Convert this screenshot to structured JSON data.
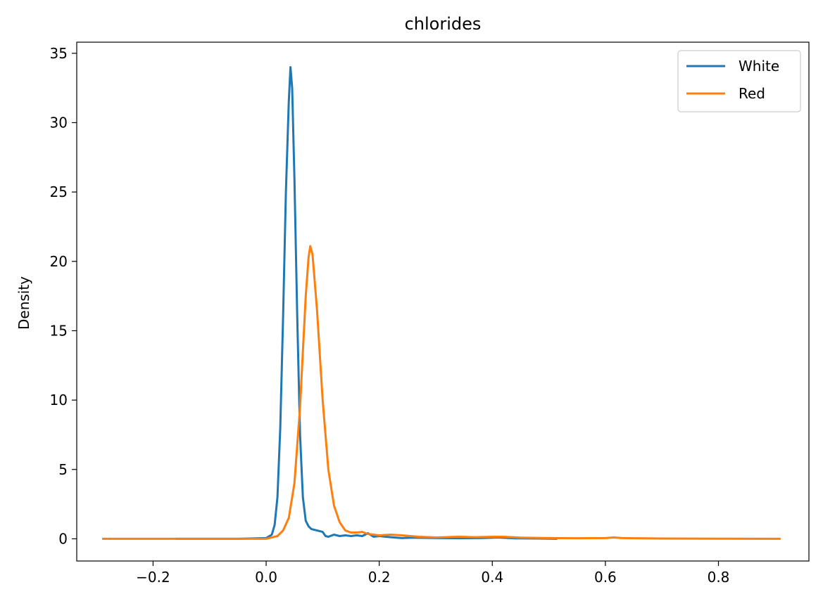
{
  "chart_data": {
    "type": "line",
    "title": "chlorides",
    "xlabel": "",
    "ylabel": "Density",
    "xlim": [
      -0.335,
      0.96
    ],
    "ylim": [
      -1.6,
      35.8
    ],
    "xticks": [
      -0.2,
      0.0,
      0.2,
      0.4,
      0.6,
      0.8
    ],
    "xtick_labels": [
      "−0.2",
      "0.0",
      "0.2",
      "0.4",
      "0.6",
      "0.8"
    ],
    "yticks": [
      0,
      5,
      10,
      15,
      20,
      25,
      30,
      35
    ],
    "ytick_labels": [
      "0",
      "5",
      "10",
      "15",
      "20",
      "25",
      "30",
      "35"
    ],
    "grid": false,
    "legend_position": "top-right",
    "series": [
      {
        "name": "White",
        "color": "#1f77b4",
        "points": [
          [
            -0.16,
            0.0
          ],
          [
            -0.05,
            0.0
          ],
          [
            0.0,
            0.05
          ],
          [
            0.01,
            0.3
          ],
          [
            0.015,
            1.0
          ],
          [
            0.02,
            3.0
          ],
          [
            0.025,
            8.0
          ],
          [
            0.03,
            16.0
          ],
          [
            0.035,
            25.0
          ],
          [
            0.04,
            31.5
          ],
          [
            0.043,
            34.0
          ],
          [
            0.046,
            32.5
          ],
          [
            0.05,
            26.0
          ],
          [
            0.055,
            16.0
          ],
          [
            0.06,
            7.5
          ],
          [
            0.065,
            3.0
          ],
          [
            0.07,
            1.3
          ],
          [
            0.075,
            0.9
          ],
          [
            0.08,
            0.7
          ],
          [
            0.09,
            0.6
          ],
          [
            0.1,
            0.5
          ],
          [
            0.105,
            0.2
          ],
          [
            0.11,
            0.15
          ],
          [
            0.12,
            0.3
          ],
          [
            0.13,
            0.2
          ],
          [
            0.14,
            0.25
          ],
          [
            0.15,
            0.2
          ],
          [
            0.16,
            0.25
          ],
          [
            0.17,
            0.2
          ],
          [
            0.18,
            0.4
          ],
          [
            0.19,
            0.15
          ],
          [
            0.2,
            0.2
          ],
          [
            0.22,
            0.12
          ],
          [
            0.24,
            0.05
          ],
          [
            0.26,
            0.08
          ],
          [
            0.3,
            0.05
          ],
          [
            0.34,
            0.04
          ],
          [
            0.38,
            0.05
          ],
          [
            0.41,
            0.1
          ],
          [
            0.44,
            0.03
          ],
          [
            0.48,
            0.02
          ],
          [
            0.515,
            0.0
          ]
        ]
      },
      {
        "name": "Red",
        "color": "#ff7f0e",
        "points": [
          [
            -0.29,
            0.0
          ],
          [
            -0.1,
            0.0
          ],
          [
            0.0,
            0.0
          ],
          [
            0.02,
            0.2
          ],
          [
            0.03,
            0.6
          ],
          [
            0.04,
            1.5
          ],
          [
            0.05,
            4.0
          ],
          [
            0.06,
            9.5
          ],
          [
            0.065,
            13.5
          ],
          [
            0.07,
            17.5
          ],
          [
            0.075,
            20.3
          ],
          [
            0.078,
            21.1
          ],
          [
            0.082,
            20.5
          ],
          [
            0.09,
            16.5
          ],
          [
            0.1,
            10.0
          ],
          [
            0.11,
            5.0
          ],
          [
            0.12,
            2.4
          ],
          [
            0.13,
            1.2
          ],
          [
            0.14,
            0.6
          ],
          [
            0.15,
            0.45
          ],
          [
            0.16,
            0.45
          ],
          [
            0.17,
            0.5
          ],
          [
            0.18,
            0.35
          ],
          [
            0.2,
            0.25
          ],
          [
            0.22,
            0.3
          ],
          [
            0.24,
            0.25
          ],
          [
            0.27,
            0.15
          ],
          [
            0.3,
            0.1
          ],
          [
            0.34,
            0.15
          ],
          [
            0.37,
            0.12
          ],
          [
            0.4,
            0.15
          ],
          [
            0.42,
            0.15
          ],
          [
            0.45,
            0.08
          ],
          [
            0.5,
            0.05
          ],
          [
            0.55,
            0.04
          ],
          [
            0.6,
            0.05
          ],
          [
            0.615,
            0.1
          ],
          [
            0.63,
            0.05
          ],
          [
            0.7,
            0.02
          ],
          [
            0.8,
            0.01
          ],
          [
            0.91,
            0.0
          ]
        ]
      }
    ]
  }
}
